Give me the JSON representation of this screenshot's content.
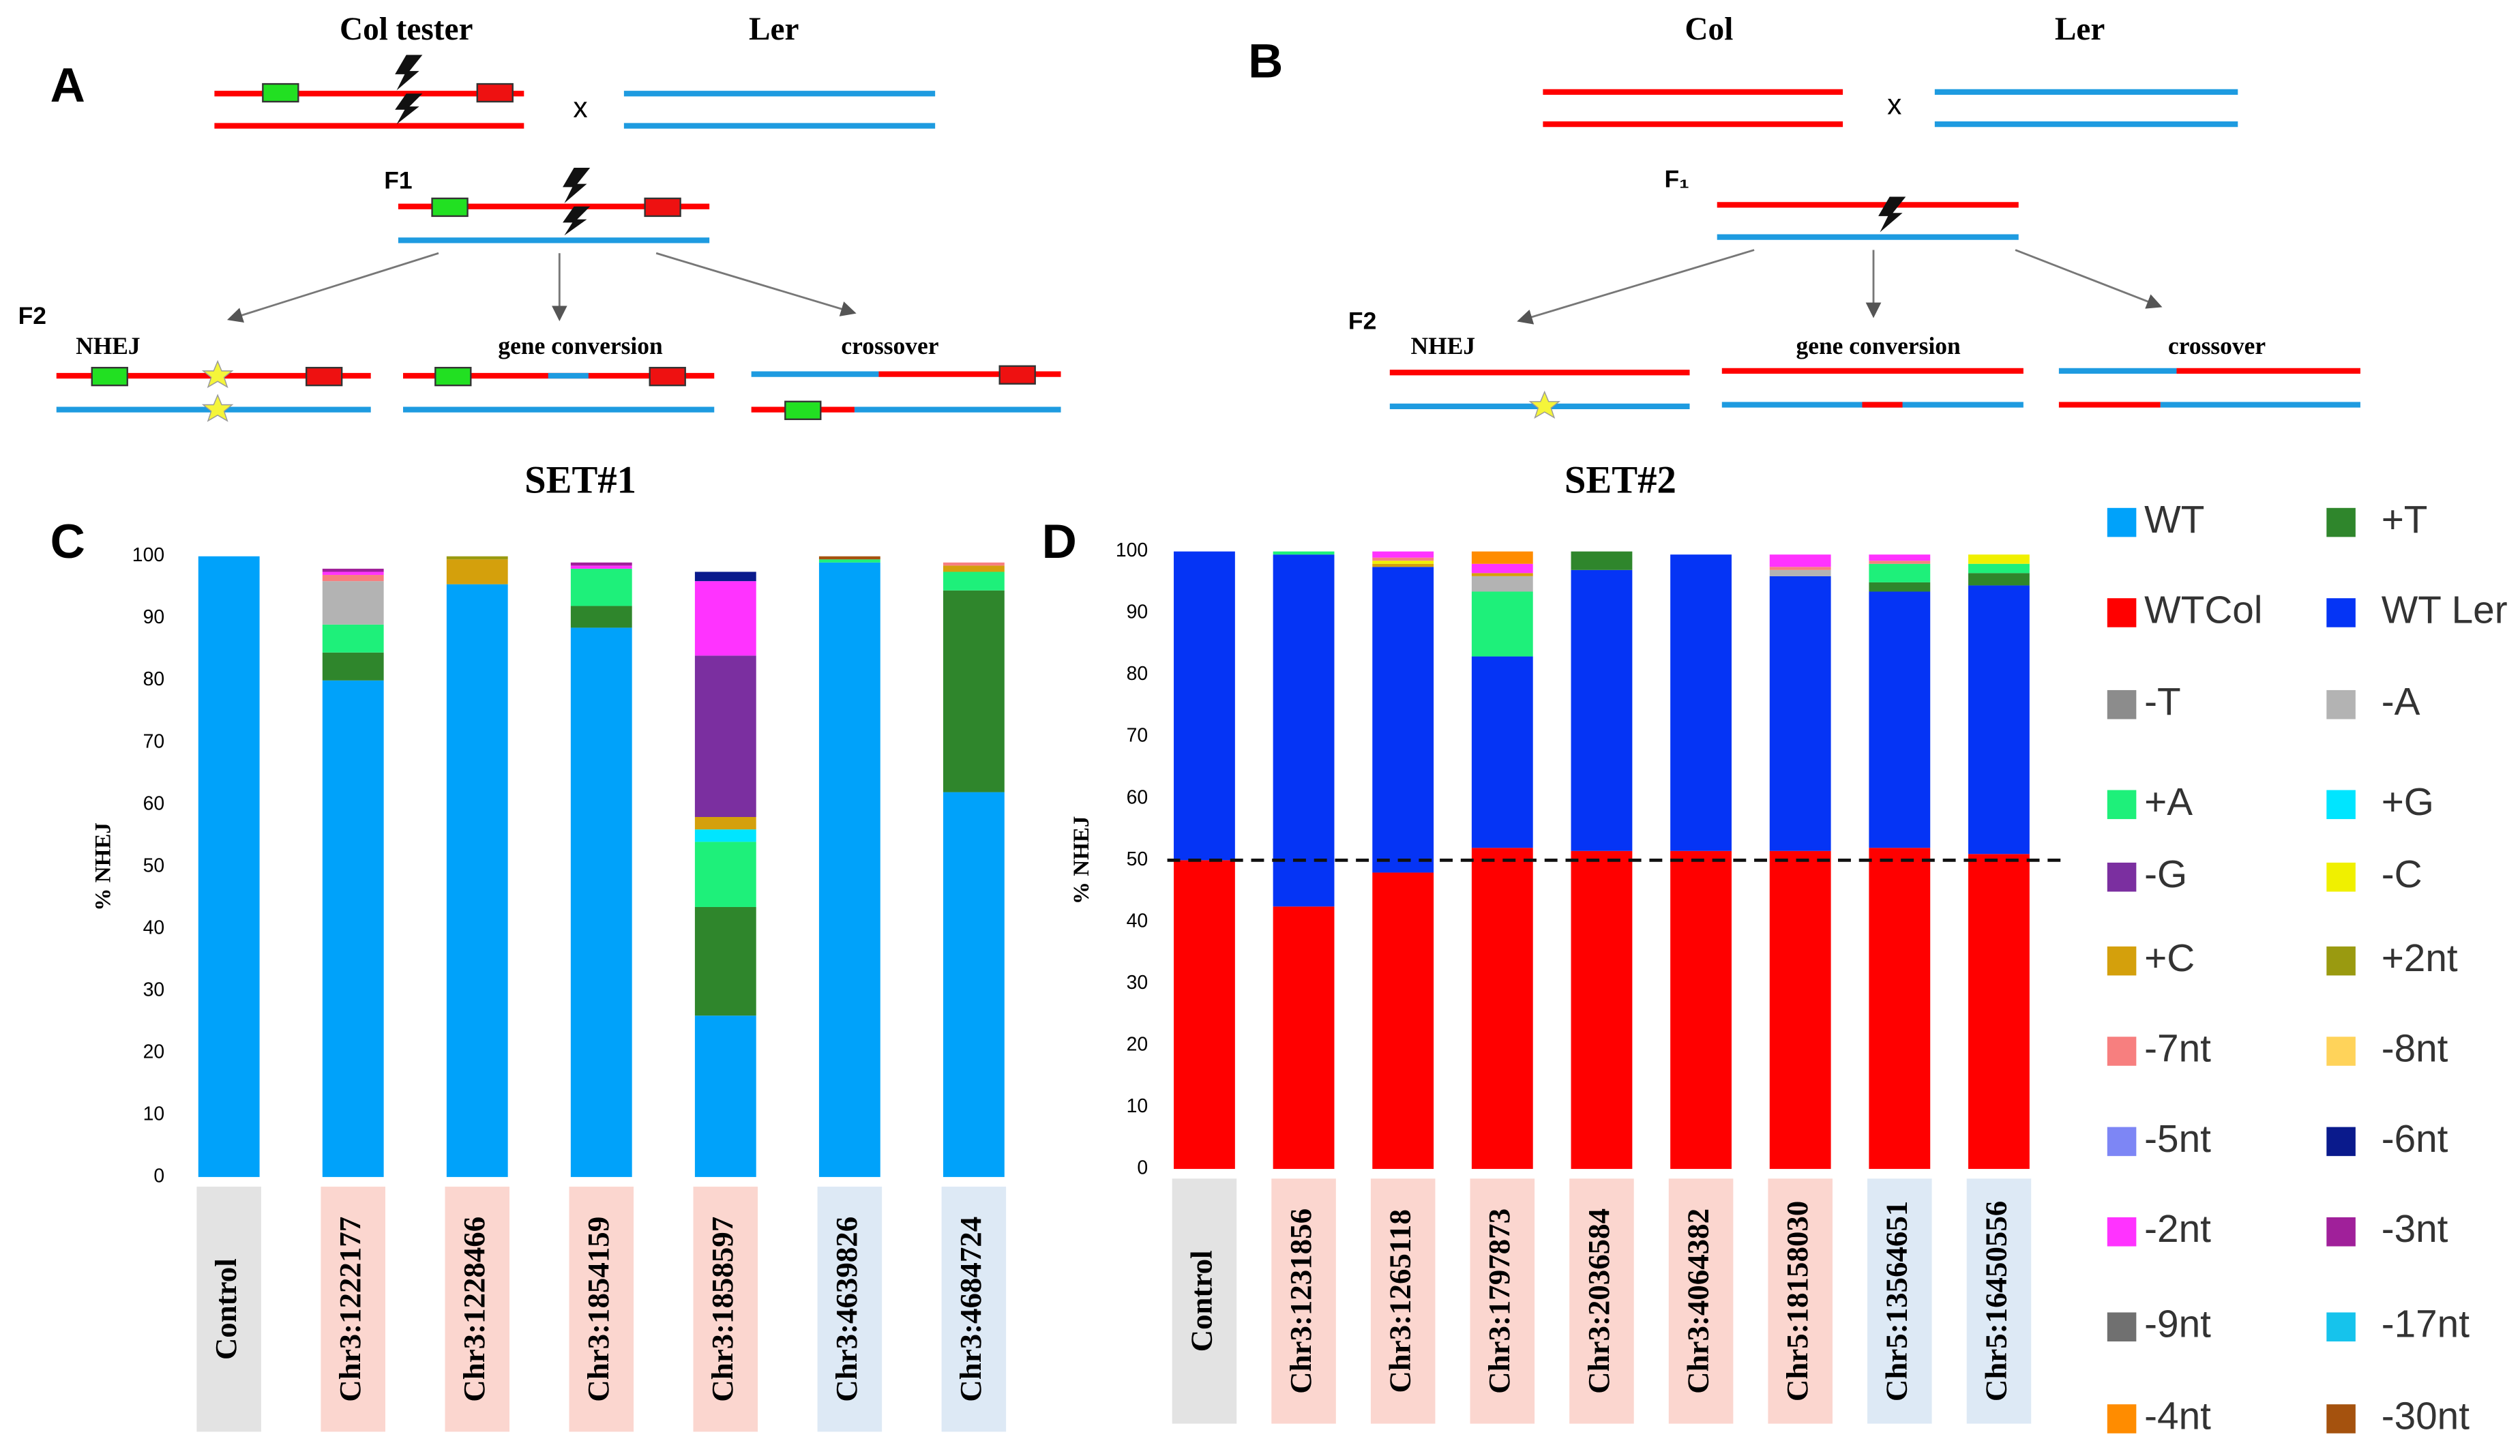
{
  "panel_a": {
    "label": "A",
    "parent1": "Col tester",
    "parent2": "Ler",
    "cross": "x",
    "f1": "F1",
    "f2": "F2",
    "outcome1": "NHEJ",
    "outcome2": "gene conversion",
    "outcome3": "crossover"
  },
  "panel_b": {
    "label": "B",
    "parent1": "Col",
    "parent2": "Ler",
    "cross": "x",
    "f1": "F₁",
    "f2": "F2",
    "outcome1": "NHEJ",
    "outcome2": "gene conversion",
    "outcome3": "crossover"
  },
  "chart_data": [
    {
      "type": "bar",
      "stacked": true,
      "label": "C",
      "title": "SET#1",
      "ylabel": "% NHEJ",
      "categories": [
        "Control",
        "Chr3:1222177",
        "Chr3:1228466",
        "Chr3:1854159",
        "Chr3:1858597",
        "Chr3:4639826",
        "Chr3:4684724"
      ],
      "category_colors": [
        "#e3e3e3",
        "#fbd6cf",
        "#fbd6cf",
        "#fbd6cf",
        "#fbd6cf",
        "#dde9f5",
        "#dde9f5"
      ],
      "ylim": [
        0,
        100
      ],
      "yticks": [
        0,
        10,
        20,
        30,
        40,
        50,
        60,
        70,
        80,
        90,
        100
      ],
      "series": [
        {
          "name": "WT",
          "color": "#00a2fa",
          "values": [
            100,
            80,
            95.5,
            88.5,
            26,
            99,
            62
          ]
        },
        {
          "name": "+T",
          "color": "#2f862c",
          "values": [
            0,
            4.5,
            0,
            3.5,
            17.5,
            0,
            32.5
          ]
        },
        {
          "name": "+A",
          "color": "#1ef07a",
          "values": [
            0,
            4.5,
            0,
            6,
            10.5,
            0.5,
            3
          ]
        },
        {
          "name": "+G",
          "color": "#00e5ff",
          "values": [
            0,
            0,
            0,
            0,
            2,
            0,
            0
          ]
        },
        {
          "name": "-A",
          "color": "#b3b3b3",
          "values": [
            0,
            7,
            0,
            0,
            0,
            0,
            0
          ]
        },
        {
          "name": "+C",
          "color": "#d4a00c",
          "values": [
            0,
            0,
            4,
            0,
            2,
            0,
            1
          ]
        },
        {
          "name": "+2nt",
          "color": "#9a9a10",
          "values": [
            0,
            0,
            0.5,
            0,
            0,
            0,
            0
          ]
        },
        {
          "name": "-G",
          "color": "#7b2fa0",
          "values": [
            0,
            0,
            0,
            0,
            26,
            0,
            0
          ]
        },
        {
          "name": "-7nt",
          "color": "#f77f7f",
          "values": [
            0,
            1,
            0,
            0,
            0,
            0,
            0.5
          ]
        },
        {
          "name": "-2nt",
          "color": "#ff33ff",
          "values": [
            0,
            0.5,
            0,
            0.5,
            12,
            0,
            0
          ]
        },
        {
          "name": "-3nt",
          "color": "#a0209a",
          "values": [
            0,
            0.5,
            0,
            0.5,
            0,
            0,
            0
          ]
        },
        {
          "name": "-6nt",
          "color": "#0a1a8c",
          "values": [
            0,
            0,
            0,
            0,
            1.5,
            0,
            0
          ]
        },
        {
          "name": "-30nt",
          "color": "#a5520e",
          "values": [
            0,
            0,
            0,
            0,
            0,
            0.5,
            0
          ]
        }
      ]
    },
    {
      "type": "bar",
      "stacked": true,
      "label": "D",
      "title": "SET#2",
      "ylabel": "% NHEJ",
      "categories": [
        "Control",
        "Chr3:1231856",
        "Chr3:1265118",
        "Chr3:1797873",
        "Chr3:2036584",
        "Chr3:4064382",
        "Chr5:18158030",
        "Chr5:13564651",
        "Chr5:16450556"
      ],
      "category_colors": [
        "#e3e3e3",
        "#fbd6cf",
        "#fbd6cf",
        "#fbd6cf",
        "#fbd6cf",
        "#fbd6cf",
        "#fbd6cf",
        "#dde9f5",
        "#dde9f5"
      ],
      "ylim": [
        0,
        100
      ],
      "yticks": [
        0,
        10,
        20,
        30,
        40,
        50,
        60,
        70,
        80,
        90,
        100
      ],
      "reference_line": 50,
      "legend": "right",
      "series": [
        {
          "name": "WT",
          "color": "#00a2fa",
          "values": [
            0,
            0,
            0,
            0,
            0,
            0,
            0,
            0,
            0
          ]
        },
        {
          "name": "WTCol",
          "color": "#ff0000",
          "values": [
            50,
            42.5,
            48,
            52,
            51.5,
            51.5,
            51.5,
            52,
            51
          ]
        },
        {
          "name": "WT Ler",
          "color": "#0534f5",
          "values": [
            50,
            57,
            49.5,
            31,
            45.5,
            48,
            44.5,
            41.5,
            43.5
          ]
        },
        {
          "name": "+T",
          "color": "#2f862c",
          "values": [
            0,
            0,
            0,
            0,
            3,
            0,
            0,
            1.5,
            2
          ]
        },
        {
          "name": "+A",
          "color": "#1ef07a",
          "values": [
            0,
            0.5,
            0,
            10.5,
            0,
            0,
            0,
            3,
            1.5
          ]
        },
        {
          "name": "-T",
          "color": "#8c8c8c",
          "values": [
            0,
            0,
            0,
            0,
            0,
            0,
            0,
            0,
            0
          ]
        },
        {
          "name": "-A",
          "color": "#b3b3b3",
          "values": [
            0,
            0,
            0,
            2.5,
            0,
            0,
            1,
            0,
            0
          ]
        },
        {
          "name": "+G",
          "color": "#00e5ff",
          "values": [
            0,
            0,
            0,
            0,
            0,
            0,
            0,
            0,
            0
          ]
        },
        {
          "name": "-G",
          "color": "#7b2fa0",
          "values": [
            0,
            0,
            0,
            0,
            0,
            0,
            0,
            0,
            0
          ]
        },
        {
          "name": "+C",
          "color": "#d4a00c",
          "values": [
            0,
            0,
            0.5,
            0.5,
            0,
            0,
            0,
            0,
            0
          ]
        },
        {
          "name": "-C",
          "color": "#f0f000",
          "values": [
            0,
            0,
            0.5,
            0,
            0,
            0,
            0,
            0,
            1.5
          ]
        },
        {
          "name": "+2nt",
          "color": "#9a9a10",
          "values": [
            0,
            0,
            0,
            0,
            0,
            0,
            0,
            0,
            0
          ]
        },
        {
          "name": "-7nt",
          "color": "#f77f7f",
          "values": [
            0,
            0,
            0.5,
            0,
            0,
            0,
            0.5,
            0.5,
            0
          ]
        },
        {
          "name": "-8nt",
          "color": "#ffd35a",
          "values": [
            0,
            0,
            0,
            0,
            0,
            0,
            0,
            0,
            0
          ]
        },
        {
          "name": "-5nt",
          "color": "#7d86f5",
          "values": [
            0,
            0,
            0,
            0,
            0,
            0,
            0,
            0,
            0
          ]
        },
        {
          "name": "-6nt",
          "color": "#0a1a8c",
          "values": [
            0,
            0,
            0,
            0,
            0,
            0,
            0,
            0,
            0
          ]
        },
        {
          "name": "-2nt",
          "color": "#ff33ff",
          "values": [
            0,
            0,
            1,
            1.5,
            0,
            0,
            2,
            1,
            0
          ]
        },
        {
          "name": "-3nt",
          "color": "#a0209a",
          "values": [
            0,
            0,
            0,
            0,
            0,
            0,
            0,
            0,
            0
          ]
        },
        {
          "name": "-9nt",
          "color": "#707070",
          "values": [
            0,
            0,
            0,
            0,
            0,
            0,
            0,
            0,
            0
          ]
        },
        {
          "name": "-17nt",
          "color": "#16c3ec",
          "values": [
            0,
            0,
            0,
            0,
            0,
            0,
            0,
            0,
            0
          ]
        },
        {
          "name": "-4nt",
          "color": "#ff8c00",
          "values": [
            0,
            0,
            0,
            2,
            0,
            0,
            0,
            0,
            0
          ]
        },
        {
          "name": "-30nt",
          "color": "#a5520e",
          "values": [
            0,
            0,
            0,
            0,
            0,
            0,
            0,
            0,
            0
          ]
        }
      ]
    }
  ]
}
